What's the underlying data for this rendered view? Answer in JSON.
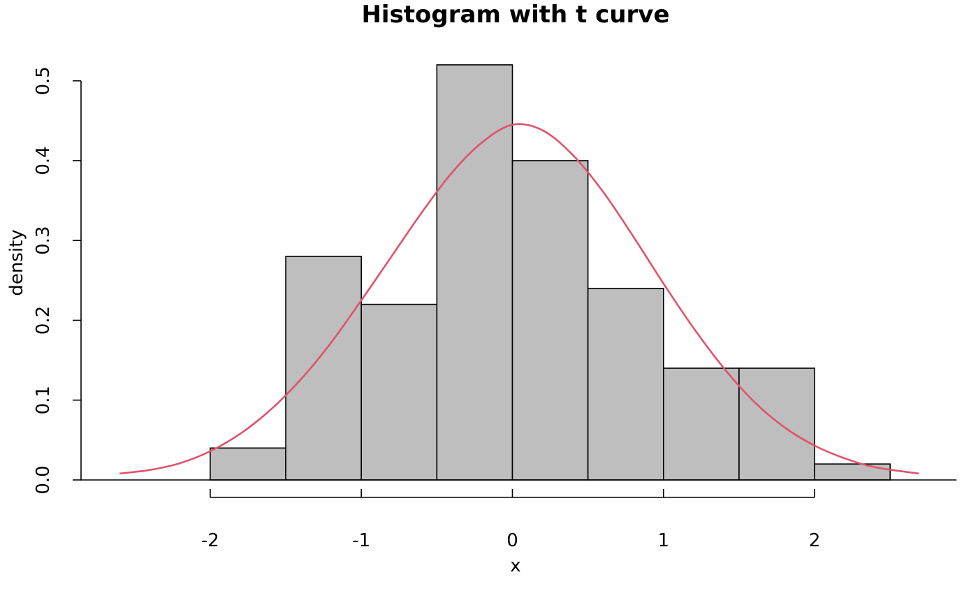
{
  "chart_data": {
    "type": "bar",
    "title": "Histogram with t curve",
    "xlabel": "x",
    "ylabel": "density",
    "bin_edges": [
      -2,
      -1.5,
      -1,
      -0.5,
      0,
      0.5,
      1,
      1.5,
      2,
      2.5
    ],
    "values": [
      0.04,
      0.28,
      0.22,
      0.52,
      0.4,
      0.24,
      0.14,
      0.14,
      0.02
    ],
    "x_ticks": [
      "-2",
      "-1",
      "0",
      "1",
      "2"
    ],
    "y_ticks": [
      "0.0",
      "0.1",
      "0.2",
      "0.3",
      "0.4",
      "0.5"
    ],
    "xlim": [
      -2.86,
      2.94
    ],
    "ylim": [
      -0.02,
      0.53
    ],
    "grid": false,
    "bar_color": "#bebebe",
    "curve": {
      "type": "line",
      "color": "#df536b",
      "x": [
        -2.6,
        -2.4,
        -2.2,
        -2.0,
        -1.8,
        -1.6,
        -1.4,
        -1.2,
        -1.0,
        -0.8,
        -0.6,
        -0.4,
        -0.2,
        0.0,
        0.2,
        0.4,
        0.6,
        0.8,
        1.0,
        1.2,
        1.4,
        1.6,
        1.8,
        2.0,
        2.2,
        2.4,
        2.69
      ],
      "y": [
        0.008,
        0.0125,
        0.021,
        0.036,
        0.058,
        0.088,
        0.126,
        0.172,
        0.225,
        0.28,
        0.335,
        0.385,
        0.423,
        0.445,
        0.438,
        0.407,
        0.361,
        0.305,
        0.246,
        0.19,
        0.14,
        0.098,
        0.066,
        0.043,
        0.027,
        0.016,
        0.008
      ]
    }
  }
}
